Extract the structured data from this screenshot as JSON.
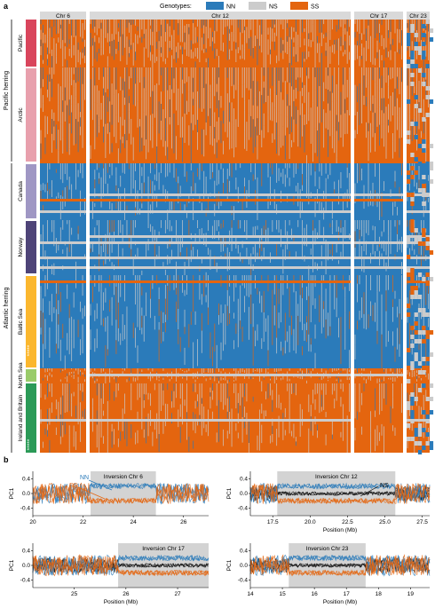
{
  "panel_a": {
    "label": "a",
    "legend_title": "Genotypes:",
    "legend": [
      {
        "label": "NN",
        "color": "#2b7bba"
      },
      {
        "label": "NS",
        "color": "#cccccc"
      },
      {
        "label": "SS",
        "color": "#e4650f"
      }
    ],
    "chromosomes": [
      "Chr 6",
      "Chr 12",
      "Chr 17",
      "Chr 23"
    ],
    "groups": [
      {
        "label": "Pacific",
        "color": "#d9455c"
      },
      {
        "label": "Arctic",
        "color": "#e8a0ad"
      },
      {
        "label": "Canada",
        "color": "#9f97c4"
      },
      {
        "label": "Norway",
        "color": "#4e4478"
      },
      {
        "label": "Baltic Sea",
        "color": "#fbb72e"
      },
      {
        "label": "North Sea",
        "color": "#9acb6a"
      },
      {
        "label": "Ireland and Britain",
        "color": "#2b9a57"
      }
    ],
    "species": [
      "Pacific herring",
      "Atlantic herring"
    ],
    "star": "*****"
  },
  "panel_b": {
    "label": "b",
    "ylabel": "PC1",
    "xlabel": "Position (Mb)",
    "colors": {
      "NN": "#2b7bba",
      "NS": "#111111",
      "SS": "#e4650f"
    },
    "annotations": {
      "NN": "NN",
      "SS": "SS",
      "NS": "NS"
    }
  },
  "chart_data": [
    {
      "type": "line",
      "title": "Inversion Chr 6",
      "xlabel": "",
      "ylabel": "PC1",
      "x_ticks": [
        20,
        22,
        24,
        26
      ],
      "y_ticks": [
        0.4,
        0.0,
        -0.4
      ],
      "xlim": [
        20,
        27
      ],
      "ylim": [
        -0.6,
        0.6
      ],
      "inversion_region": [
        22.3,
        24.9
      ],
      "series": [
        {
          "name": "NN",
          "level": 0.2
        },
        {
          "name": "SS",
          "level": -0.2
        }
      ]
    },
    {
      "type": "line",
      "title": "Inversion Chr 12",
      "xlabel": "Position (Mb)",
      "ylabel": "PC1",
      "x_ticks": [
        17.5,
        20.0,
        22.5,
        25.0,
        27.5
      ],
      "y_ticks": [
        0.4,
        0.0,
        -0.4
      ],
      "xlim": [
        16,
        28
      ],
      "ylim": [
        -0.6,
        0.6
      ],
      "inversion_region": [
        17.8,
        25.7
      ],
      "series": [
        {
          "name": "NN",
          "level": 0.2
        },
        {
          "name": "NS",
          "level": 0.0
        },
        {
          "name": "SS",
          "level": -0.2
        }
      ]
    },
    {
      "type": "line",
      "title": "Inversion Chr 17",
      "xlabel": "Position (Mb)",
      "ylabel": "PC1",
      "x_ticks": [
        25,
        26,
        27
      ],
      "y_ticks": [
        0.4,
        0.0,
        -0.4
      ],
      "xlim": [
        24.2,
        27.6
      ],
      "ylim": [
        -0.6,
        0.6
      ],
      "inversion_region": [
        25.85,
        27.6
      ],
      "series": [
        {
          "name": "NN",
          "level": 0.2
        },
        {
          "name": "NS",
          "level": 0.0
        },
        {
          "name": "SS",
          "level": -0.2
        }
      ]
    },
    {
      "type": "line",
      "title": "Inversion Chr 23",
      "xlabel": "Position (Mb)",
      "ylabel": "PC1",
      "x_ticks": [
        14,
        15,
        16,
        17,
        18,
        19
      ],
      "y_ticks": [
        0.4,
        0.0,
        -0.4
      ],
      "xlim": [
        14,
        19.6
      ],
      "ylim": [
        -0.6,
        0.6
      ],
      "inversion_region": [
        15.2,
        17.6
      ],
      "series": [
        {
          "name": "NN",
          "level": 0.2
        },
        {
          "name": "NS",
          "level": 0.0
        },
        {
          "name": "SS",
          "level": -0.2
        }
      ]
    }
  ]
}
